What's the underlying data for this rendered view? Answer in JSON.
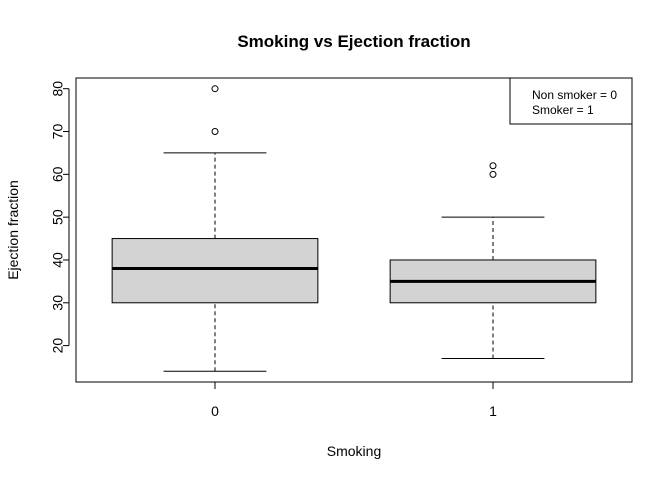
{
  "chart_data": {
    "type": "box",
    "title": "Smoking vs Ejection fraction",
    "xlabel": "Smoking",
    "ylabel": "Ejection fraction",
    "categories": [
      "0",
      "1"
    ],
    "ylim": [
      11.5,
      82.5
    ],
    "yticks": [
      20,
      30,
      40,
      50,
      60,
      70,
      80
    ],
    "boxes": [
      {
        "category": "0",
        "whisker_low": 14,
        "q1": 30,
        "median": 38,
        "q3": 45,
        "whisker_high": 65,
        "outliers": [
          70,
          80
        ]
      },
      {
        "category": "1",
        "whisker_low": 17,
        "q1": 30,
        "median": 35,
        "q3": 40,
        "whisker_high": 50,
        "outliers": [
          60,
          62
        ]
      }
    ],
    "legend": {
      "position": "top-right",
      "entries": [
        "Non smoker = 0",
        "Smoker = 1"
      ]
    },
    "colors": {
      "box_fill": "#d3d3d3",
      "stroke": "#000000"
    }
  }
}
